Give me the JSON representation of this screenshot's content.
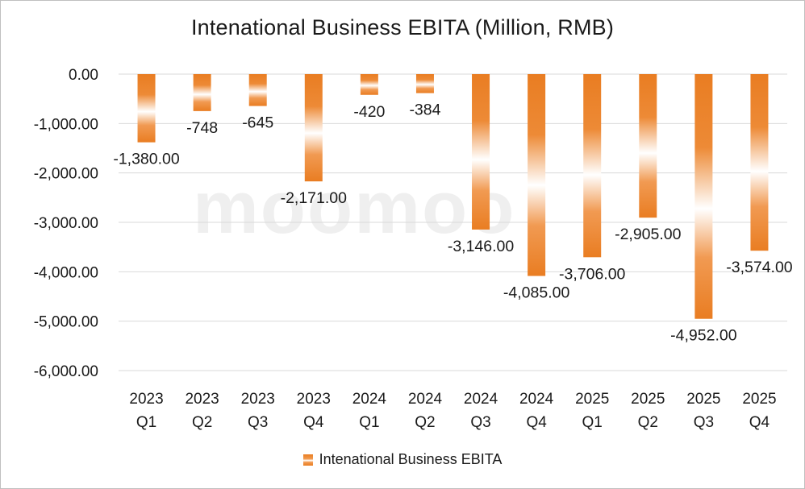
{
  "watermark_text": "moomoo",
  "chart_data": {
    "type": "bar",
    "title": "Intenational Business EBITA (Million, RMB)",
    "categories": [
      [
        "2023",
        "Q1"
      ],
      [
        "2023",
        "Q2"
      ],
      [
        "2023",
        "Q3"
      ],
      [
        "2023",
        "Q4"
      ],
      [
        "2024",
        "Q1"
      ],
      [
        "2024",
        "Q2"
      ],
      [
        "2024",
        "Q3"
      ],
      [
        "2024",
        "Q4"
      ],
      [
        "2025",
        "Q1"
      ],
      [
        "2025",
        "Q2"
      ],
      [
        "2025",
        "Q3"
      ],
      [
        "2025",
        "Q4"
      ]
    ],
    "series": [
      {
        "name": "Intenational Business EBITA",
        "values": [
          -1380,
          -748,
          -645,
          -2171,
          -420,
          -384,
          -3146,
          -4085,
          -3706,
          -2905,
          -4952,
          -3574
        ],
        "data_labels": [
          "-1,380.00",
          "-748",
          "-645",
          "-2,171.00",
          "-420",
          "-384",
          "-3,146.00",
          "-4,085.00",
          "-3,706.00",
          "-2,905.00",
          "-4,952.00",
          "-3,574.00"
        ],
        "color": "#e97d22"
      }
    ],
    "ylim": [
      -6000,
      0
    ],
    "y_ticks": [
      0,
      -1000,
      -2000,
      -3000,
      -4000,
      -5000,
      -6000
    ],
    "y_tick_labels": [
      "0.00",
      "-1,000.00",
      "-2,000.00",
      "-3,000.00",
      "-4,000.00",
      "-5,000.00",
      "-6,000.00"
    ],
    "xlabel": "",
    "ylabel": "",
    "grid": true,
    "legend_position": "bottom",
    "colors": {
      "bar": "#e97d22",
      "bar_light": "#f6b27a",
      "grid": "#d9d9d9",
      "text": "#1a1a1a"
    }
  }
}
